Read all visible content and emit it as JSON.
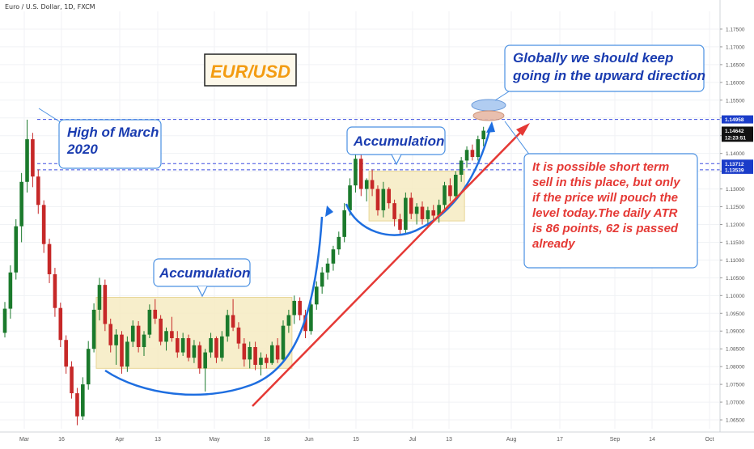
{
  "header": {
    "title": "Euro / U.S. Dollar, 1D, FXCM"
  },
  "chart_data": {
    "type": "candlestick",
    "symbol_label": "EUR/USD",
    "ylim": [
      1.0625,
      1.18
    ],
    "y_ticks": [
      "1.17500",
      "1.17000",
      "1.16500",
      "1.16000",
      "1.15500",
      "1.15000",
      "1.14500",
      "1.14000",
      "1.13500",
      "1.13000",
      "1.12500",
      "1.12000",
      "1.11500",
      "1.11000",
      "1.10500",
      "1.10000",
      "1.09500",
      "1.09000",
      "1.08500",
      "1.08000",
      "1.07500",
      "1.07000",
      "1.06500"
    ],
    "x_ticks": [
      "Mar",
      "16",
      "Apr",
      "13",
      "May",
      "18",
      "Jun",
      "15",
      "Jul",
      "13",
      "Aug",
      "17",
      "Sep",
      "14",
      "Oct"
    ],
    "price_labels": [
      {
        "text": "1.14958",
        "value": 1.14958,
        "color": "#1a3cc9"
      },
      {
        "text": "1.14642",
        "value": 1.14642,
        "color": "#111111"
      },
      {
        "text": "12:23:51",
        "value": 1.14442,
        "color": "#111111"
      },
      {
        "text": "1.13712",
        "value": 1.13712,
        "color": "#1a3cc9"
      },
      {
        "text": "1.13539",
        "value": 1.13539,
        "color": "#1a3cc9"
      }
    ],
    "candles": [
      {
        "o": 1.0895,
        "h": 1.0982,
        "l": 1.0882,
        "c": 1.0963
      },
      {
        "o": 1.0963,
        "h": 1.1085,
        "l": 1.0935,
        "c": 1.1065
      },
      {
        "o": 1.1065,
        "h": 1.1215,
        "l": 1.1045,
        "c": 1.1195
      },
      {
        "o": 1.1195,
        "h": 1.1345,
        "l": 1.115,
        "c": 1.132
      },
      {
        "o": 1.132,
        "h": 1.1495,
        "l": 1.129,
        "c": 1.144
      },
      {
        "o": 1.144,
        "h": 1.1458,
        "l": 1.1305,
        "c": 1.1335
      },
      {
        "o": 1.1335,
        "h": 1.1355,
        "l": 1.123,
        "c": 1.1255
      },
      {
        "o": 1.1255,
        "h": 1.1268,
        "l": 1.112,
        "c": 1.1145
      },
      {
        "o": 1.1145,
        "h": 1.116,
        "l": 1.1035,
        "c": 1.106
      },
      {
        "o": 1.106,
        "h": 1.1078,
        "l": 1.094,
        "c": 1.0965
      },
      {
        "o": 1.0965,
        "h": 1.098,
        "l": 1.0855,
        "c": 1.0875
      },
      {
        "o": 1.0875,
        "h": 1.0888,
        "l": 1.078,
        "c": 1.08
      },
      {
        "o": 1.08,
        "h": 1.0815,
        "l": 1.071,
        "c": 1.0725
      },
      {
        "o": 1.0725,
        "h": 1.074,
        "l": 1.0635,
        "c": 1.066
      },
      {
        "o": 1.066,
        "h": 1.077,
        "l": 1.065,
        "c": 1.075
      },
      {
        "o": 1.075,
        "h": 1.0872,
        "l": 1.0735,
        "c": 1.085
      },
      {
        "o": 1.085,
        "h": 1.0978,
        "l": 1.084,
        "c": 1.096
      },
      {
        "o": 1.096,
        "h": 1.105,
        "l": 1.093,
        "c": 1.103
      },
      {
        "o": 1.103,
        "h": 1.1045,
        "l": 1.09,
        "c": 1.092
      },
      {
        "o": 1.092,
        "h": 1.0935,
        "l": 1.084,
        "c": 1.086
      },
      {
        "o": 1.086,
        "h": 1.0905,
        "l": 1.0805,
        "c": 1.089
      },
      {
        "o": 1.089,
        "h": 1.09,
        "l": 1.078,
        "c": 1.08
      },
      {
        "o": 1.08,
        "h": 1.0885,
        "l": 1.0785,
        "c": 1.087
      },
      {
        "o": 1.087,
        "h": 1.093,
        "l": 1.0855,
        "c": 1.0915
      },
      {
        "o": 1.0915,
        "h": 1.0928,
        "l": 1.084,
        "c": 1.0855
      },
      {
        "o": 1.0855,
        "h": 1.09,
        "l": 1.083,
        "c": 1.089
      },
      {
        "o": 1.089,
        "h": 1.0975,
        "l": 1.088,
        "c": 1.096
      },
      {
        "o": 1.096,
        "h": 1.099,
        "l": 1.092,
        "c": 1.0935
      },
      {
        "o": 1.0935,
        "h": 1.0945,
        "l": 1.086,
        "c": 1.087
      },
      {
        "o": 1.087,
        "h": 1.091,
        "l": 1.0845,
        "c": 1.09
      },
      {
        "o": 1.09,
        "h": 1.094,
        "l": 1.087,
        "c": 1.088
      },
      {
        "o": 1.088,
        "h": 1.09,
        "l": 1.0825,
        "c": 1.084
      },
      {
        "o": 1.084,
        "h": 1.0895,
        "l": 1.083,
        "c": 1.088
      },
      {
        "o": 1.088,
        "h": 1.089,
        "l": 1.0815,
        "c": 1.0825
      },
      {
        "o": 1.0825,
        "h": 1.0875,
        "l": 1.081,
        "c": 1.086
      },
      {
        "o": 1.086,
        "h": 1.087,
        "l": 1.078,
        "c": 1.0795
      },
      {
        "o": 1.0795,
        "h": 1.085,
        "l": 1.073,
        "c": 1.084
      },
      {
        "o": 1.084,
        "h": 1.0895,
        "l": 1.0825,
        "c": 1.088
      },
      {
        "o": 1.088,
        "h": 1.0885,
        "l": 1.081,
        "c": 1.0825
      },
      {
        "o": 1.0825,
        "h": 1.09,
        "l": 1.0815,
        "c": 1.0885
      },
      {
        "o": 1.0885,
        "h": 1.096,
        "l": 1.087,
        "c": 1.0945
      },
      {
        "o": 1.0945,
        "h": 1.099,
        "l": 1.09,
        "c": 1.091
      },
      {
        "o": 1.091,
        "h": 1.0925,
        "l": 1.085,
        "c": 1.0865
      },
      {
        "o": 1.0865,
        "h": 1.088,
        "l": 1.08,
        "c": 1.082
      },
      {
        "o": 1.082,
        "h": 1.087,
        "l": 1.0795,
        "c": 1.0855
      },
      {
        "o": 1.0855,
        "h": 1.087,
        "l": 1.079,
        "c": 1.0805
      },
      {
        "o": 1.0805,
        "h": 1.084,
        "l": 1.0775,
        "c": 1.0825
      },
      {
        "o": 1.0825,
        "h": 1.0835,
        "l": 1.0795,
        "c": 1.081
      },
      {
        "o": 1.081,
        "h": 1.087,
        "l": 1.0805,
        "c": 1.086
      },
      {
        "o": 1.086,
        "h": 1.088,
        "l": 1.081,
        "c": 1.082
      },
      {
        "o": 1.082,
        "h": 1.093,
        "l": 1.0815,
        "c": 1.0915
      },
      {
        "o": 1.0915,
        "h": 1.096,
        "l": 1.0895,
        "c": 1.0945
      },
      {
        "o": 1.0945,
        "h": 1.1,
        "l": 1.092,
        "c": 1.0985
      },
      {
        "o": 1.0985,
        "h": 1.0995,
        "l": 1.093,
        "c": 1.0945
      },
      {
        "o": 1.0945,
        "h": 1.096,
        "l": 1.088,
        "c": 1.09
      },
      {
        "o": 1.09,
        "h": 1.099,
        "l": 1.089,
        "c": 1.0975
      },
      {
        "o": 1.0975,
        "h": 1.104,
        "l": 1.096,
        "c": 1.1025
      },
      {
        "o": 1.1025,
        "h": 1.108,
        "l": 1.1005,
        "c": 1.1065
      },
      {
        "o": 1.1065,
        "h": 1.1105,
        "l": 1.1045,
        "c": 1.109
      },
      {
        "o": 1.109,
        "h": 1.114,
        "l": 1.107,
        "c": 1.113
      },
      {
        "o": 1.113,
        "h": 1.118,
        "l": 1.1115,
        "c": 1.1165
      },
      {
        "o": 1.1165,
        "h": 1.126,
        "l": 1.115,
        "c": 1.124
      },
      {
        "o": 1.124,
        "h": 1.133,
        "l": 1.1225,
        "c": 1.131
      },
      {
        "o": 1.131,
        "h": 1.14,
        "l": 1.129,
        "c": 1.1385
      },
      {
        "o": 1.1385,
        "h": 1.14,
        "l": 1.128,
        "c": 1.13
      },
      {
        "o": 1.13,
        "h": 1.133,
        "l": 1.1265,
        "c": 1.1325
      },
      {
        "o": 1.1325,
        "h": 1.1355,
        "l": 1.128,
        "c": 1.13
      },
      {
        "o": 1.13,
        "h": 1.131,
        "l": 1.1225,
        "c": 1.124
      },
      {
        "o": 1.124,
        "h": 1.132,
        "l": 1.122,
        "c": 1.13
      },
      {
        "o": 1.13,
        "h": 1.1305,
        "l": 1.1245,
        "c": 1.126
      },
      {
        "o": 1.126,
        "h": 1.127,
        "l": 1.1195,
        "c": 1.1215
      },
      {
        "o": 1.1215,
        "h": 1.123,
        "l": 1.117,
        "c": 1.1185
      },
      {
        "o": 1.1185,
        "h": 1.129,
        "l": 1.1175,
        "c": 1.1275
      },
      {
        "o": 1.1275,
        "h": 1.129,
        "l": 1.1215,
        "c": 1.123
      },
      {
        "o": 1.123,
        "h": 1.126,
        "l": 1.12,
        "c": 1.125
      },
      {
        "o": 1.125,
        "h": 1.1265,
        "l": 1.12,
        "c": 1.1215
      },
      {
        "o": 1.1215,
        "h": 1.125,
        "l": 1.1195,
        "c": 1.124
      },
      {
        "o": 1.124,
        "h": 1.1255,
        "l": 1.121,
        "c": 1.1225
      },
      {
        "o": 1.1225,
        "h": 1.127,
        "l": 1.1205,
        "c": 1.1255
      },
      {
        "o": 1.1255,
        "h": 1.132,
        "l": 1.124,
        "c": 1.131
      },
      {
        "o": 1.131,
        "h": 1.133,
        "l": 1.1265,
        "c": 1.128
      },
      {
        "o": 1.128,
        "h": 1.135,
        "l": 1.127,
        "c": 1.134
      },
      {
        "o": 1.134,
        "h": 1.139,
        "l": 1.132,
        "c": 1.138
      },
      {
        "o": 1.138,
        "h": 1.142,
        "l": 1.136,
        "c": 1.141
      },
      {
        "o": 1.141,
        "h": 1.1425,
        "l": 1.138,
        "c": 1.139
      },
      {
        "o": 1.139,
        "h": 1.145,
        "l": 1.138,
        "c": 1.144
      },
      {
        "o": 1.144,
        "h": 1.1475,
        "l": 1.142,
        "c": 1.1464
      }
    ],
    "levels": [
      1.14958,
      1.13712,
      1.13539
    ],
    "accumulation_zones": [
      {
        "label": "Accumulation",
        "start": 17,
        "end": 51,
        "top": 1.0995,
        "bottom": 1.0795
      },
      {
        "label": "Accumulation",
        "start": 66,
        "end": 82,
        "top": 1.135,
        "bottom": 1.121
      }
    ],
    "annotations": [
      {
        "id": "high-march",
        "text": [
          "High of March",
          "2020"
        ],
        "color": "#1a3cb0"
      },
      {
        "id": "global",
        "text": [
          "Globally we should keep",
          "going in the upward direction"
        ],
        "color": "#1a3cb0"
      },
      {
        "id": "short-term",
        "text": [
          "It is possible short term",
          "sell in this place, but only",
          "if the price will pouch the",
          "level today.The daily ATR",
          "is 86 points, 62 is passed",
          "already"
        ],
        "color": "#e53935"
      }
    ]
  },
  "colors": {
    "bull": "#1b7a2c",
    "bear": "#c62828",
    "level": "#3d4de0",
    "curve": "#1e6ee0",
    "trend": "#e53935",
    "zone_fill": "#f6ecc2",
    "zone_stroke": "#e4cf85",
    "logo": "#f39c12",
    "callout_stroke": "#4a90e2"
  }
}
